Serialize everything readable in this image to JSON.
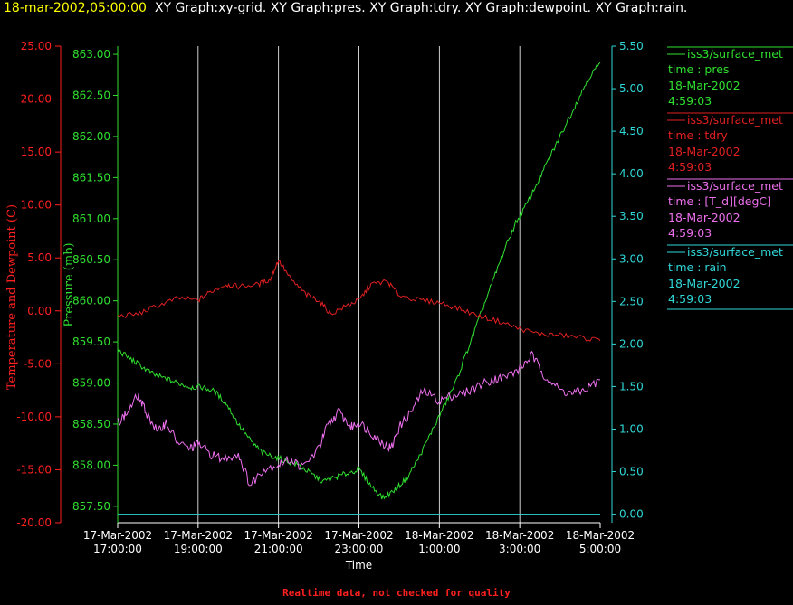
{
  "header": {
    "date": "18-mar-2002,05:00:00",
    "titles": "XY Graph:xy-grid.  XY Graph:pres.  XY Graph:tdry.  XY Graph:dewpoint.  XY Graph:rain."
  },
  "footer": "Realtime data, not checked for quality",
  "colors": {
    "temperature_axis": "#ff2020",
    "pressure": "#30e030",
    "tdry": "#e02020",
    "dewpoint": "#ee70ee",
    "rain": "#30d8d8",
    "grid": "#ffffff"
  },
  "legend": [
    {
      "source": "iss3/surface_met",
      "field": "time : pres",
      "date": "18-Mar-2002",
      "time": "4:59:03",
      "color": "#30e030"
    },
    {
      "source": "iss3/surface_met",
      "field": "time : tdry",
      "date": "18-Mar-2002",
      "time": "4:59:03",
      "color": "#e02020"
    },
    {
      "source": "iss3/surface_met",
      "field": "time : [T_d][degC]",
      "date": "18-Mar-2002",
      "time": "4:59:03",
      "color": "#ee70ee"
    },
    {
      "source": "iss3/surface_met",
      "field": "time : rain",
      "date": "18-Mar-2002",
      "time": "4:59:03",
      "color": "#30d8d8"
    }
  ],
  "chart_data": {
    "type": "line",
    "xlabel": "Time",
    "x_ticks": [
      {
        "date": "17-Mar-2002",
        "time": "17:00:00"
      },
      {
        "date": "17-Mar-2002",
        "time": "19:00:00"
      },
      {
        "date": "17-Mar-2002",
        "time": "21:00:00"
      },
      {
        "date": "17-Mar-2002",
        "time": "23:00:00"
      },
      {
        "date": "18-Mar-2002",
        "time": "1:00:00"
      },
      {
        "date": "18-Mar-2002",
        "time": "3:00:00"
      },
      {
        "date": "18-Mar-2002",
        "time": "5:00:00"
      }
    ],
    "x_range_hours": [
      0,
      12
    ],
    "x_unit": "hours after 17-Mar-2002 17:00:00",
    "vertical_grid": true,
    "axes": {
      "temperature": {
        "label": "Temperature and Dewpoint (C)",
        "ticks": [
          "25.00",
          "20.00",
          "15.00",
          "10.00",
          "5.00",
          "0.00",
          "-5.00",
          "-10.00",
          "-15.00",
          "-20.00"
        ],
        "range": [
          -20,
          25
        ]
      },
      "pressure": {
        "label": "Pressure (mb)",
        "ticks": [
          "863.00",
          "862.50",
          "862.00",
          "861.50",
          "861.00",
          "860.50",
          "860.00",
          "859.50",
          "859.00",
          "858.50",
          "858.00",
          "857.50"
        ],
        "range": [
          857.3,
          863.1
        ]
      },
      "rain": {
        "label": "",
        "ticks": [
          "5.50",
          "5.00",
          "4.50",
          "4.00",
          "3.50",
          "3.00",
          "2.50",
          "2.00",
          "1.50",
          "1.00",
          "0.50",
          "0.00"
        ],
        "range": [
          -0.1,
          5.5
        ]
      }
    },
    "series": [
      {
        "key": "pres",
        "axis": "pressure",
        "x": [
          0,
          0.3,
          0.6,
          0.9,
          1.2,
          1.5,
          1.8,
          2.1,
          2.4,
          2.7,
          3.0,
          3.3,
          3.6,
          3.9,
          4.2,
          4.5,
          4.8,
          5.1,
          5.4,
          5.7,
          6.0,
          6.3,
          6.6,
          6.9,
          7.2,
          7.5,
          7.8,
          8.1,
          8.4,
          8.7,
          9.0,
          9.3,
          9.6,
          9.9,
          10.2,
          10.5,
          10.8,
          11.1,
          11.4,
          11.7,
          12.0
        ],
        "y": [
          859.4,
          859.3,
          859.2,
          859.1,
          859.05,
          859.0,
          858.95,
          858.95,
          858.9,
          858.75,
          858.5,
          858.3,
          858.15,
          858.1,
          858.05,
          858.0,
          857.9,
          857.8,
          857.85,
          857.9,
          857.95,
          857.75,
          857.6,
          857.7,
          857.85,
          858.1,
          858.4,
          858.7,
          859.0,
          859.4,
          859.8,
          860.2,
          860.6,
          860.95,
          861.2,
          861.5,
          861.8,
          862.1,
          862.4,
          862.7,
          862.9
        ]
      },
      {
        "key": "tdry",
        "axis": "temperature",
        "x": [
          0,
          0.5,
          1.0,
          1.5,
          2.0,
          2.3,
          2.7,
          3.0,
          3.5,
          3.8,
          4.0,
          4.3,
          4.7,
          5.0,
          5.3,
          5.7,
          6.0,
          6.3,
          6.7,
          7.0,
          7.5,
          8.0,
          8.5,
          9.0,
          9.5,
          10.0,
          10.5,
          11.0,
          11.5,
          12.0
        ],
        "y": [
          -0.5,
          -0.3,
          0.5,
          1.2,
          1.0,
          1.8,
          2.5,
          2.3,
          2.5,
          3.0,
          4.8,
          3.0,
          1.5,
          1.0,
          -0.3,
          0.5,
          1.0,
          2.5,
          2.8,
          1.5,
          1.0,
          0.8,
          0.2,
          -0.5,
          -1.0,
          -1.7,
          -2.2,
          -2.3,
          -2.5,
          -2.8
        ]
      },
      {
        "key": "dewpoint",
        "axis": "temperature",
        "x": [
          0,
          0.2,
          0.5,
          0.7,
          1.0,
          1.2,
          1.5,
          1.8,
          2.0,
          2.3,
          2.6,
          3.0,
          3.3,
          3.6,
          4.0,
          4.3,
          4.6,
          5.0,
          5.2,
          5.5,
          5.8,
          6.0,
          6.3,
          6.6,
          6.8,
          7.0,
          7.3,
          7.6,
          8.0,
          8.3,
          8.6,
          9.0,
          9.3,
          9.6,
          10.0,
          10.3,
          10.6,
          11.0,
          11.3,
          11.6,
          12.0
        ],
        "y": [
          -10.5,
          -9.8,
          -8.0,
          -9.5,
          -11.5,
          -10.5,
          -12.5,
          -13.0,
          -12.5,
          -13.5,
          -14.0,
          -13.5,
          -16.5,
          -15.0,
          -14.5,
          -14.0,
          -14.8,
          -13.0,
          -11.0,
          -9.5,
          -11.0,
          -10.5,
          -11.5,
          -12.5,
          -13.0,
          -11.0,
          -9.5,
          -7.5,
          -8.5,
          -8.0,
          -7.8,
          -7.0,
          -6.5,
          -6.3,
          -5.5,
          -4.2,
          -6.0,
          -7.5,
          -7.8,
          -7.5,
          -6.5
        ]
      },
      {
        "key": "rain",
        "axis": "rain",
        "x": [
          0,
          12
        ],
        "y": [
          0,
          0
        ]
      }
    ]
  }
}
